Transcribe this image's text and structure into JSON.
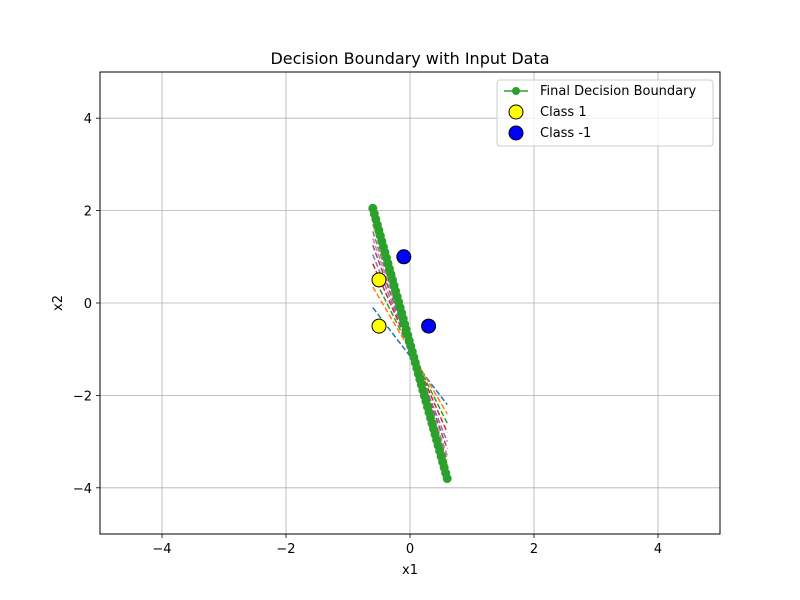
{
  "chart_data": {
    "type": "scatter",
    "title": "Decision Boundary with Input Data",
    "xlabel": "x1",
    "ylabel": "x2",
    "xlim": [
      -5,
      5
    ],
    "ylim": [
      -5,
      5
    ],
    "xticks": [
      -4,
      -2,
      0,
      2,
      4
    ],
    "yticks": [
      -4,
      -2,
      0,
      2,
      4
    ],
    "grid": true,
    "legend_position": "top-right",
    "final_boundary": {
      "name": "Final Decision Boundary",
      "color": "#2ca02c",
      "x_start": -0.6,
      "y_start": 2.05,
      "x_end": 0.6,
      "y_end": -3.8,
      "n_points": 50
    },
    "intermediate_boundaries": [
      {
        "color": "#1f77b4",
        "x1": -0.6,
        "y1": -0.1,
        "x2": 0.6,
        "y2": -2.2
      },
      {
        "color": "#ff7f0e",
        "x1": -0.6,
        "y1": 0.35,
        "x2": 0.6,
        "y2": -2.4
      },
      {
        "color": "#2ca02c",
        "x1": -0.6,
        "y1": 0.6,
        "x2": 0.6,
        "y2": -2.6
      },
      {
        "color": "#d62728",
        "x1": -0.6,
        "y1": 0.85,
        "x2": 0.6,
        "y2": -2.8
      },
      {
        "color": "#9467bd",
        "x1": -0.6,
        "y1": 1.05,
        "x2": 0.6,
        "y2": -3.0
      },
      {
        "color": "#8c564b",
        "x1": -0.6,
        "y1": 1.25,
        "x2": 0.6,
        "y2": -3.15
      },
      {
        "color": "#e377c2",
        "x1": -0.6,
        "y1": 1.4,
        "x2": 0.6,
        "y2": -3.3
      },
      {
        "color": "#7f7f7f",
        "x1": -0.6,
        "y1": 1.55,
        "x2": 0.6,
        "y2": -3.4
      },
      {
        "color": "#bcbd22",
        "x1": -0.6,
        "y1": 1.7,
        "x2": 0.6,
        "y2": -3.5
      },
      {
        "color": "#17becf",
        "x1": -0.6,
        "y1": 1.85,
        "x2": 0.6,
        "y2": -3.65
      }
    ],
    "series": [
      {
        "name": "Class 1",
        "color": "#ffff00",
        "points": [
          [
            -0.5,
            0.5
          ],
          [
            -0.5,
            -0.5
          ]
        ]
      },
      {
        "name": "Class -1",
        "color": "#0000ff",
        "points": [
          [
            -0.1,
            1.0
          ],
          [
            0.3,
            -0.5
          ]
        ]
      }
    ]
  }
}
